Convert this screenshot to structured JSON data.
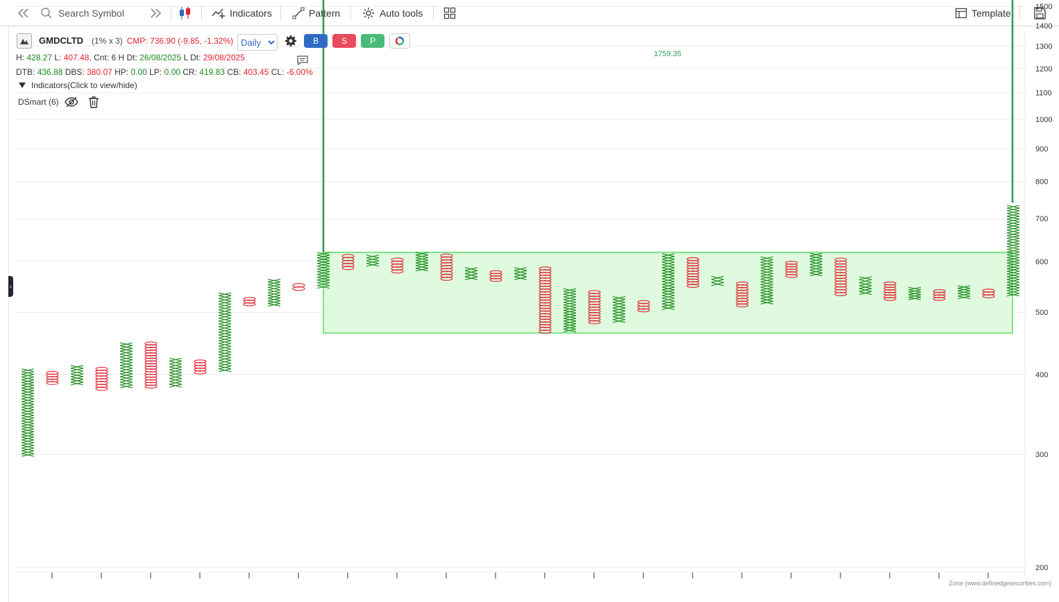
{
  "toolbar": {
    "search_placeholder": "Search Symbol",
    "indicators_label": "Indicators",
    "pattern_label": "Pattern",
    "auto_tools_label": "Auto tools",
    "template_label": "Template"
  },
  "legend": {
    "symbol": "GMDCLTD",
    "box_info": "(1% x 3)",
    "cmp": "CMP: 736.90 (-9.85, -1.32%)",
    "interval": "Daily",
    "interval_options": [
      "Daily"
    ],
    "buy_label": "B",
    "sell_label": "S",
    "p_label": "P",
    "h_label": "H:",
    "h_value": "428.27",
    "l_label": "L:",
    "l_value": "407.48,",
    "cnt_text": "Cnt: 6 H Dt:",
    "h_dt": "26/08/2025",
    "l_dt_label": "L Dt:",
    "l_dt": "29/08/2025",
    "dtb_label": "DTB:",
    "dtb_value": "436.88",
    "dbs_label": "DBS:",
    "dbs_value": "380.07",
    "hp_label": "HP:",
    "hp_value": "0.00",
    "lp_label": "LP:",
    "lp_value": "0.00",
    "cr_label": "CR:",
    "cr_value": "419.83",
    "cb_label": "CB:",
    "cb_value": "403.45",
    "cl_label": "CL:",
    "cl_value": "-6.00%",
    "indicators_toggle": "Indicators(Click to view/hide)",
    "indicator_name": "DSmart (6)"
  },
  "colors": {
    "x_mark": "#1a8a1a",
    "o_mark": "#e0222e",
    "target_line": "#2e9a5a",
    "zone_fill": "#dcfadc",
    "zone_border": "#6fe07a",
    "buy": "#2f6bc4",
    "sell": "#e94a5c",
    "p": "#4cbb7a"
  },
  "chart_data": {
    "type": "point-and-figure",
    "box_size": "1%",
    "reversal": 3,
    "y_scale": "log",
    "ylim": [
      200,
      1900
    ],
    "y_ticks": [
      200,
      300,
      400,
      500,
      600,
      700,
      800,
      900,
      1000,
      1100,
      1200,
      1300,
      1400,
      1500,
      1600,
      1700,
      1800,
      1900
    ],
    "target_label": "1759.35",
    "target_value": 1759.35,
    "zone": {
      "low": 464,
      "high": 620
    },
    "columns": [
      {
        "type": "X",
        "low": 298,
        "high": 408
      },
      {
        "type": "O",
        "low": 386,
        "high": 404
      },
      {
        "type": "X",
        "low": 385,
        "high": 413
      },
      {
        "type": "O",
        "low": 378,
        "high": 410
      },
      {
        "type": "X",
        "low": 381,
        "high": 448
      },
      {
        "type": "O",
        "low": 381,
        "high": 449
      },
      {
        "type": "X",
        "low": 382,
        "high": 424
      },
      {
        "type": "O",
        "low": 401,
        "high": 421
      },
      {
        "type": "X",
        "low": 404,
        "high": 536
      },
      {
        "type": "O",
        "low": 512,
        "high": 527
      },
      {
        "type": "X",
        "low": 511,
        "high": 563
      },
      {
        "type": "O",
        "low": 541,
        "high": 554
      },
      {
        "type": "X",
        "low": 545,
        "high": 620
      },
      {
        "type": "O",
        "low": 583,
        "high": 615
      },
      {
        "type": "X",
        "low": 590,
        "high": 614
      },
      {
        "type": "O",
        "low": 576,
        "high": 607
      },
      {
        "type": "X",
        "low": 580,
        "high": 620
      },
      {
        "type": "O",
        "low": 561,
        "high": 616
      },
      {
        "type": "X",
        "low": 562,
        "high": 587
      },
      {
        "type": "O",
        "low": 559,
        "high": 580
      },
      {
        "type": "X",
        "low": 562,
        "high": 587
      },
      {
        "type": "O",
        "low": 464,
        "high": 588
      },
      {
        "type": "X",
        "low": 466,
        "high": 544
      },
      {
        "type": "O",
        "low": 480,
        "high": 540
      },
      {
        "type": "X",
        "low": 482,
        "high": 529
      },
      {
        "type": "O",
        "low": 501,
        "high": 521
      },
      {
        "type": "X",
        "low": 505,
        "high": 617
      },
      {
        "type": "O",
        "low": 547,
        "high": 608
      },
      {
        "type": "X",
        "low": 550,
        "high": 569
      },
      {
        "type": "O",
        "low": 510,
        "high": 557
      },
      {
        "type": "X",
        "low": 515,
        "high": 610
      },
      {
        "type": "O",
        "low": 567,
        "high": 600
      },
      {
        "type": "X",
        "low": 570,
        "high": 618
      },
      {
        "type": "O",
        "low": 531,
        "high": 607
      },
      {
        "type": "X",
        "low": 533,
        "high": 568
      },
      {
        "type": "O",
        "low": 522,
        "high": 557
      },
      {
        "type": "X",
        "low": 523,
        "high": 547
      },
      {
        "type": "O",
        "low": 522,
        "high": 542
      },
      {
        "type": "X",
        "low": 525,
        "high": 550
      },
      {
        "type": "O",
        "low": 527,
        "high": 543
      },
      {
        "type": "X",
        "low": 530,
        "high": 734
      }
    ]
  },
  "footer": {
    "watermark": "Zone (www.definedgesecurities.com)"
  }
}
